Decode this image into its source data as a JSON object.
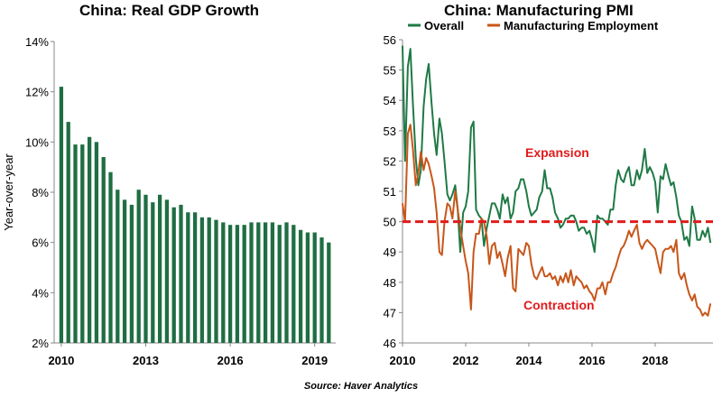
{
  "source": "Source: Haver Analytics",
  "chart_data": [
    {
      "type": "bar",
      "title": "China: Real GDP Growth",
      "xlabel": "",
      "ylabel": "Year-over-year",
      "ylim": [
        2,
        14
      ],
      "yticks": [
        "2%",
        "4%",
        "6%",
        "8%",
        "10%",
        "12%",
        "14%"
      ],
      "xticks": [
        "2010",
        "2013",
        "2016",
        "2019"
      ],
      "bar_color": "#1f6e43",
      "grid": false,
      "categories": [
        "2010Q1",
        "2010Q2",
        "2010Q3",
        "2010Q4",
        "2011Q1",
        "2011Q2",
        "2011Q3",
        "2011Q4",
        "2012Q1",
        "2012Q2",
        "2012Q3",
        "2012Q4",
        "2013Q1",
        "2013Q2",
        "2013Q3",
        "2013Q4",
        "2014Q1",
        "2014Q2",
        "2014Q3",
        "2014Q4",
        "2015Q1",
        "2015Q2",
        "2015Q3",
        "2015Q4",
        "2016Q1",
        "2016Q2",
        "2016Q3",
        "2016Q4",
        "2017Q1",
        "2017Q2",
        "2017Q3",
        "2017Q4",
        "2018Q1",
        "2018Q2",
        "2018Q3",
        "2018Q4",
        "2019Q1",
        "2019Q2",
        "2019Q3"
      ],
      "values": [
        12.2,
        10.8,
        9.9,
        9.9,
        10.2,
        10.0,
        9.4,
        8.8,
        8.1,
        7.7,
        7.5,
        8.1,
        7.9,
        7.6,
        7.9,
        7.7,
        7.4,
        7.5,
        7.2,
        7.2,
        7.0,
        7.0,
        6.9,
        6.8,
        6.7,
        6.7,
        6.7,
        6.8,
        6.8,
        6.8,
        6.8,
        6.7,
        6.8,
        6.7,
        6.5,
        6.4,
        6.4,
        6.2,
        6.0
      ]
    },
    {
      "type": "line",
      "title": "China: Manufacturing PMI",
      "xlabel": "",
      "ylabel": "",
      "ylim": [
        46,
        56
      ],
      "xlim": [
        2010,
        2019.83
      ],
      "yticks": [
        "46",
        "47",
        "48",
        "49",
        "50",
        "51",
        "52",
        "53",
        "54",
        "55",
        "56"
      ],
      "xticks": [
        "2010",
        "2012",
        "2014",
        "2016",
        "2018"
      ],
      "grid": false,
      "legend_position": "top",
      "reference_line": {
        "value": 50,
        "color": "#e01b1b",
        "style": "dashed"
      },
      "annotations": [
        {
          "text": "Expansion",
          "color": "#e01b1b"
        },
        {
          "text": "Contraction",
          "color": "#e01b1b"
        }
      ],
      "series": [
        {
          "name": "Overall",
          "color": "#1f7a45",
          "x": [
            2010.0,
            2010.08,
            2010.17,
            2010.25,
            2010.33,
            2010.42,
            2010.5,
            2010.58,
            2010.67,
            2010.75,
            2010.83,
            2010.92,
            2011.0,
            2011.08,
            2011.17,
            2011.25,
            2011.33,
            2011.42,
            2011.5,
            2011.58,
            2011.67,
            2011.75,
            2011.83,
            2011.92,
            2012.0,
            2012.08,
            2012.17,
            2012.25,
            2012.33,
            2012.42,
            2012.5,
            2012.58,
            2012.67,
            2012.75,
            2012.83,
            2012.92,
            2013.0,
            2013.08,
            2013.17,
            2013.25,
            2013.33,
            2013.42,
            2013.5,
            2013.58,
            2013.67,
            2013.75,
            2013.83,
            2013.92,
            2014.0,
            2014.08,
            2014.17,
            2014.25,
            2014.33,
            2014.42,
            2014.5,
            2014.58,
            2014.67,
            2014.75,
            2014.83,
            2014.92,
            2015.0,
            2015.08,
            2015.17,
            2015.25,
            2015.33,
            2015.42,
            2015.5,
            2015.58,
            2015.67,
            2015.75,
            2015.83,
            2015.92,
            2016.0,
            2016.08,
            2016.17,
            2016.25,
            2016.33,
            2016.42,
            2016.5,
            2016.58,
            2016.67,
            2016.75,
            2016.83,
            2016.92,
            2017.0,
            2017.08,
            2017.17,
            2017.25,
            2017.33,
            2017.42,
            2017.5,
            2017.58,
            2017.67,
            2017.75,
            2017.83,
            2017.92,
            2018.0,
            2018.08,
            2018.17,
            2018.25,
            2018.33,
            2018.42,
            2018.5,
            2018.58,
            2018.67,
            2018.75,
            2018.83,
            2018.92,
            2019.0,
            2019.08,
            2019.17,
            2019.25,
            2019.33,
            2019.42,
            2019.5,
            2019.58,
            2019.67,
            2019.75
          ],
          "y": [
            55.8,
            52.0,
            55.1,
            55.7,
            53.9,
            52.1,
            51.2,
            51.7,
            53.8,
            54.7,
            55.2,
            53.9,
            52.9,
            52.2,
            53.4,
            52.9,
            52.0,
            50.9,
            50.7,
            50.9,
            51.2,
            50.4,
            49.0,
            50.3,
            50.5,
            51.0,
            53.1,
            53.3,
            50.4,
            50.2,
            50.1,
            49.2,
            49.8,
            50.2,
            50.6,
            50.6,
            50.4,
            50.1,
            50.9,
            50.6,
            50.8,
            50.1,
            50.3,
            51.0,
            51.1,
            51.4,
            51.4,
            51.0,
            50.5,
            50.2,
            50.3,
            50.4,
            50.8,
            51.0,
            51.7,
            51.1,
            51.1,
            50.8,
            50.3,
            50.1,
            49.8,
            49.9,
            50.1,
            50.1,
            50.2,
            50.2,
            50.0,
            49.7,
            49.8,
            49.8,
            49.6,
            49.7,
            49.4,
            49.0,
            50.2,
            50.1,
            50.1,
            50.0,
            49.9,
            50.4,
            50.4,
            51.2,
            51.7,
            51.4,
            51.3,
            51.6,
            51.8,
            51.2,
            51.2,
            51.7,
            51.4,
            51.7,
            52.4,
            51.6,
            51.8,
            51.6,
            51.3,
            50.3,
            51.5,
            51.4,
            51.9,
            51.5,
            51.2,
            51.3,
            50.8,
            50.2,
            50.0,
            49.4,
            49.5,
            49.2,
            50.5,
            50.1,
            49.4,
            49.4,
            49.7,
            49.5,
            49.8,
            49.3
          ]
        },
        {
          "name": "Manufacturing Employment",
          "color": "#c8561a",
          "x": [
            2010.0,
            2010.08,
            2010.17,
            2010.25,
            2010.33,
            2010.42,
            2010.5,
            2010.58,
            2010.67,
            2010.75,
            2010.83,
            2010.92,
            2011.0,
            2011.08,
            2011.17,
            2011.25,
            2011.33,
            2011.42,
            2011.5,
            2011.58,
            2011.67,
            2011.75,
            2011.83,
            2011.92,
            2012.0,
            2012.08,
            2012.17,
            2012.25,
            2012.33,
            2012.42,
            2012.5,
            2012.58,
            2012.67,
            2012.75,
            2012.83,
            2012.92,
            2013.0,
            2013.08,
            2013.17,
            2013.25,
            2013.33,
            2013.42,
            2013.5,
            2013.58,
            2013.67,
            2013.75,
            2013.83,
            2013.92,
            2014.0,
            2014.08,
            2014.17,
            2014.25,
            2014.33,
            2014.42,
            2014.5,
            2014.58,
            2014.67,
            2014.75,
            2014.83,
            2014.92,
            2015.0,
            2015.08,
            2015.17,
            2015.25,
            2015.33,
            2015.42,
            2015.5,
            2015.58,
            2015.67,
            2015.75,
            2015.83,
            2015.92,
            2016.0,
            2016.08,
            2016.17,
            2016.25,
            2016.33,
            2016.42,
            2016.5,
            2016.58,
            2016.67,
            2016.75,
            2016.83,
            2016.92,
            2017.0,
            2017.08,
            2017.17,
            2017.25,
            2017.33,
            2017.42,
            2017.5,
            2017.58,
            2017.67,
            2017.75,
            2017.83,
            2017.92,
            2018.0,
            2018.08,
            2018.17,
            2018.25,
            2018.33,
            2018.42,
            2018.5,
            2018.58,
            2018.67,
            2018.75,
            2018.83,
            2018.92,
            2019.0,
            2019.08,
            2019.17,
            2019.25,
            2019.33,
            2019.42,
            2019.5,
            2019.58,
            2019.67,
            2019.75
          ],
          "y": [
            50.6,
            50.0,
            52.9,
            53.2,
            52.4,
            51.2,
            51.6,
            52.3,
            51.7,
            52.1,
            51.9,
            51.5,
            51.1,
            50.3,
            49.0,
            48.9,
            50.0,
            50.6,
            50.5,
            50.1,
            51.0,
            50.4,
            49.8,
            49.2,
            48.7,
            48.3,
            47.1,
            49.0,
            49.6,
            49.6,
            50.1,
            50.0,
            49.5,
            48.6,
            49.2,
            49.3,
            48.8,
            49.0,
            48.6,
            48.2,
            48.8,
            49.2,
            47.8,
            47.7,
            49.1,
            49.0,
            48.9,
            49.3,
            49.2,
            48.6,
            48.2,
            48.1,
            48.3,
            48.5,
            48.2,
            48.2,
            48.3,
            48.1,
            48.2,
            47.9,
            48.2,
            48.0,
            48.3,
            48.0,
            48.4,
            47.9,
            48.2,
            48.1,
            48.0,
            47.8,
            47.9,
            47.7,
            47.6,
            47.4,
            47.8,
            47.8,
            48.0,
            47.6,
            48.0,
            48.0,
            48.3,
            48.5,
            48.8,
            49.1,
            49.2,
            49.4,
            49.7,
            49.5,
            49.7,
            49.9,
            49.3,
            49.1,
            49.3,
            49.4,
            49.3,
            49.2,
            49.1,
            48.7,
            48.3,
            49.0,
            49.1,
            49.1,
            49.2,
            49.0,
            49.4,
            48.3,
            48.1,
            48.3,
            47.9,
            47.6,
            47.4,
            47.6,
            47.2,
            47.1,
            46.9,
            47.0,
            46.9,
            47.3
          ]
        }
      ]
    }
  ]
}
